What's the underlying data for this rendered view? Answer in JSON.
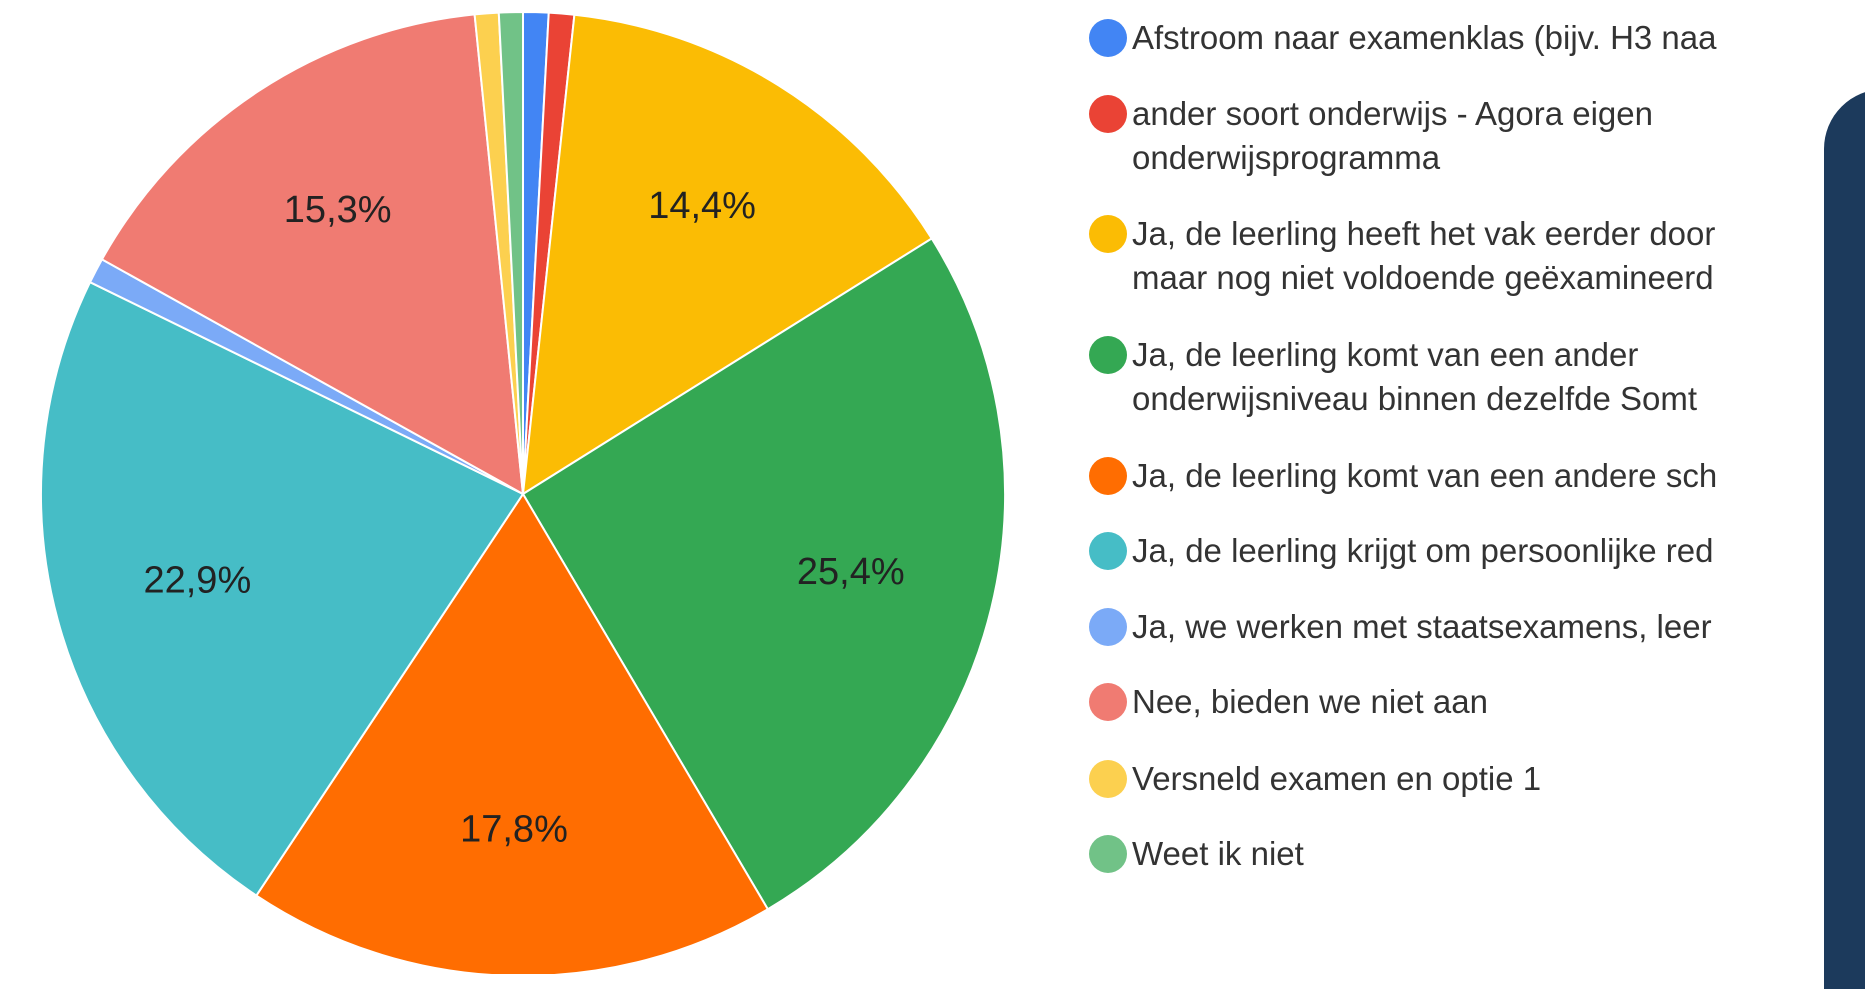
{
  "chart_data": {
    "type": "pie",
    "categories": [
      "Afstroom naar examenklas (bijv. H3 naa",
      "ander soort onderwijs - Agora eigen\nonderwijsprogramma",
      "Ja, de leerling heeft het vak eerder door\nmaar nog niet voldoende geëxamineerd",
      "Ja, de leerling komt van een ander\nonderwijsniveau binnen dezelfde Somt",
      "Ja, de leerling komt van een andere sch",
      "Ja, de leerling krijgt om persoonlijke red",
      "Ja, we werken met staatsexamens, leer",
      "Nee, bieden we niet aan",
      "Versneld examen en optie 1",
      "Weet ik niet"
    ],
    "values": [
      0.85,
      0.85,
      14.4,
      25.4,
      17.8,
      22.9,
      0.85,
      15.3,
      0.8,
      0.8
    ],
    "value_labels": [
      null,
      null,
      "14,4%",
      "25,4%",
      "17,8%",
      "22,9%",
      null,
      "15,3%",
      null,
      null
    ],
    "colors": [
      "#4285f4",
      "#ea4335",
      "#fbbc04",
      "#34a853",
      "#ff6d01",
      "#46bdc6",
      "#7baaf7",
      "#f07b72",
      "#fcd04f",
      "#71c287"
    ]
  }
}
